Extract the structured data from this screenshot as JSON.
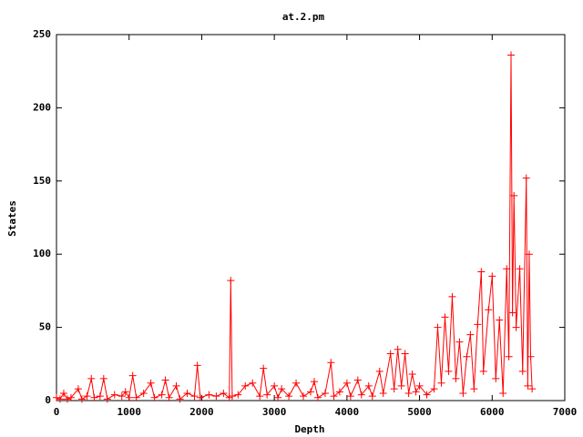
{
  "chart_data": {
    "type": "linespoints",
    "title": "at.2.pm",
    "x_label": "Depth",
    "y_label": "States",
    "xlim": [
      0,
      7000
    ],
    "xticks": [
      0,
      1000,
      2000,
      3000,
      4000,
      5000,
      6000,
      7000
    ],
    "ylim": [
      0,
      250
    ],
    "yticks": [
      0,
      50,
      100,
      150,
      200,
      250
    ],
    "series": [
      {
        "color": "#ff0000",
        "x": [
          0,
          50,
          100,
          150,
          200,
          300,
          350,
          420,
          480,
          520,
          600,
          650,
          700,
          800,
          900,
          950,
          1000,
          1050,
          1100,
          1200,
          1300,
          1350,
          1450,
          1500,
          1550,
          1650,
          1700,
          1800,
          1900,
          1940,
          1980,
          2100,
          2200,
          2300,
          2380,
          2400,
          2420,
          2500,
          2600,
          2700,
          2800,
          2850,
          2900,
          3000,
          3050,
          3100,
          3200,
          3300,
          3400,
          3500,
          3550,
          3600,
          3700,
          3780,
          3820,
          3900,
          4000,
          4050,
          4150,
          4200,
          4300,
          4350,
          4450,
          4500,
          4600,
          4650,
          4700,
          4750,
          4800,
          4850,
          4900,
          4950,
          5000,
          5100,
          5200,
          5250,
          5300,
          5350,
          5400,
          5450,
          5500,
          5550,
          5600,
          5650,
          5700,
          5750,
          5800,
          5850,
          5880,
          5950,
          6000,
          6050,
          6100,
          6150,
          6200,
          6230,
          6260,
          6280,
          6300,
          6330,
          6380,
          6420,
          6470,
          6490,
          6510,
          6530,
          6550
        ],
        "values": [
          2,
          1,
          5,
          1,
          2,
          8,
          1,
          3,
          15,
          2,
          3,
          15,
          1,
          4,
          3,
          6,
          2,
          17,
          2,
          5,
          12,
          2,
          4,
          14,
          2,
          10,
          1,
          5,
          3,
          24,
          2,
          4,
          3,
          5,
          2,
          82,
          3,
          4,
          10,
          12,
          3,
          22,
          4,
          10,
          2,
          8,
          3,
          12,
          3,
          6,
          13,
          2,
          5,
          26,
          3,
          6,
          12,
          3,
          14,
          4,
          10,
          3,
          20,
          5,
          32,
          8,
          35,
          10,
          32,
          5,
          18,
          6,
          10,
          4,
          8,
          50,
          12,
          57,
          20,
          71,
          15,
          40,
          5,
          30,
          45,
          8,
          52,
          88,
          20,
          62,
          85,
          15,
          55,
          5,
          90,
          30,
          236,
          60,
          140,
          50,
          90,
          20,
          152,
          10,
          100,
          30,
          8
        ]
      }
    ]
  }
}
